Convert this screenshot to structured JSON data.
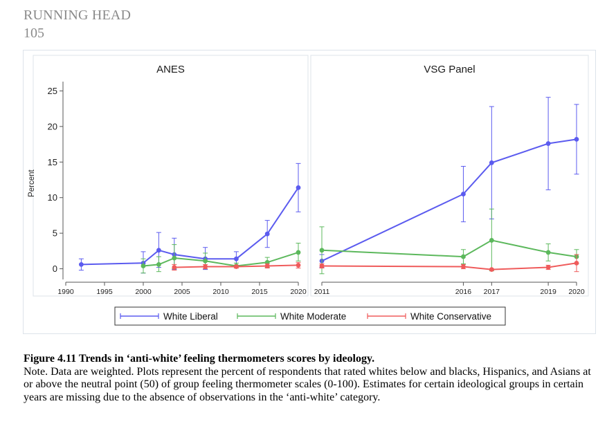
{
  "page": {
    "running_head": "RUNNING HEAD",
    "page_number": "105"
  },
  "caption": {
    "title": "Figure 4.11 Trends in ‘anti-white’ feeling thermometers scores by ideology.",
    "note": "Note. Data are weighted. Plots represent the percent of respondents that rated whites below and blacks, Hispanics, and Asians at or above the neutral point (50) of group feeling thermometer scales (0-100). Estimates for certain ideological groups in certain years are missing due to the absence of observations  in the ‘anti-white’ category."
  },
  "colors": {
    "liberal": "#5b5bef",
    "moderate": "#5cb85c",
    "conservative": "#ef5b5b",
    "frame": "#dce3ea"
  },
  "chart_data": [
    {
      "type": "line",
      "panel": "ANES",
      "title": "ANES",
      "ylabel": "Percent",
      "xlabel": "",
      "ylim": [
        -1.5,
        26.5
      ],
      "yticks": [
        0,
        5,
        10,
        15,
        20,
        25
      ],
      "xlim": [
        1990,
        2020.8
      ],
      "xticks": [
        1990,
        1995,
        2000,
        2005,
        2010,
        2015,
        2020
      ],
      "x_scale": "linear",
      "grid": false,
      "legend": "bottom",
      "series": [
        {
          "name": "White Liberal",
          "color_key": "liberal",
          "points": [
            {
              "x": 1992,
              "y": 0.6,
              "lo": -0.2,
              "hi": 1.4
            },
            {
              "x": 2000,
              "y": 0.8,
              "lo": -0.6,
              "hi": 2.4
            },
            {
              "x": 2002,
              "y": 2.6,
              "lo": 0.2,
              "hi": 5.1
            },
            {
              "x": 2004,
              "y": 2.0,
              "lo": -0.1,
              "hi": 4.3
            },
            {
              "x": 2008,
              "y": 1.4,
              "lo": -0.1,
              "hi": 3.0
            },
            {
              "x": 2012,
              "y": 1.4,
              "lo": 0.3,
              "hi": 2.4
            },
            {
              "x": 2016,
              "y": 4.9,
              "lo": 3.0,
              "hi": 6.8
            },
            {
              "x": 2020,
              "y": 11.4,
              "lo": 8.0,
              "hi": 14.8
            }
          ]
        },
        {
          "name": "White Moderate",
          "color_key": "moderate",
          "points": [
            {
              "x": 2000,
              "y": 0.4,
              "lo": -0.6,
              "hi": 1.4
            },
            {
              "x": 2002,
              "y": 0.6,
              "lo": -0.4,
              "hi": 1.7
            },
            {
              "x": 2004,
              "y": 1.5,
              "lo": 0.0,
              "hi": 3.4
            },
            {
              "x": 2008,
              "y": 1.1,
              "lo": 0.0,
              "hi": 2.2
            },
            {
              "x": 2012,
              "y": 0.4,
              "lo": 0.1,
              "hi": 0.8
            },
            {
              "x": 2016,
              "y": 0.9,
              "lo": 0.2,
              "hi": 1.6
            },
            {
              "x": 2020,
              "y": 2.3,
              "lo": 1.1,
              "hi": 3.6
            }
          ]
        },
        {
          "name": "White Conservative",
          "color_key": "conservative",
          "points": [
            {
              "x": 2004,
              "y": 0.2,
              "lo": -0.2,
              "hi": 0.6
            },
            {
              "x": 2008,
              "y": 0.3,
              "lo": 0.0,
              "hi": 0.6
            },
            {
              "x": 2012,
              "y": 0.3,
              "lo": 0.1,
              "hi": 0.5
            },
            {
              "x": 2016,
              "y": 0.4,
              "lo": 0.1,
              "hi": 0.7
            },
            {
              "x": 2020,
              "y": 0.5,
              "lo": 0.1,
              "hi": 0.9
            }
          ]
        }
      ]
    },
    {
      "type": "line",
      "panel": "VSG Panel",
      "title": "VSG Panel",
      "xlabel": "",
      "ylim": [
        -1.5,
        26.5
      ],
      "yticks": [
        0,
        5,
        10,
        15,
        20,
        25
      ],
      "x_scale": "categorical-ordinal",
      "xticks": [
        2011,
        2016,
        2017,
        2019,
        2020
      ],
      "grid": false,
      "series": [
        {
          "name": "White Liberal",
          "color_key": "liberal",
          "points": [
            {
              "x": 2011,
              "y": 1.1,
              "lo": 0.2,
              "hi": 2.0
            },
            {
              "x": 2016,
              "y": 10.5,
              "lo": 6.6,
              "hi": 14.4
            },
            {
              "x": 2017,
              "y": 14.9,
              "lo": 7.0,
              "hi": 22.8
            },
            {
              "x": 2019,
              "y": 17.6,
              "lo": 11.1,
              "hi": 24.1
            },
            {
              "x": 2020,
              "y": 18.2,
              "lo": 13.3,
              "hi": 23.1
            }
          ]
        },
        {
          "name": "White Moderate",
          "color_key": "moderate",
          "points": [
            {
              "x": 2011,
              "y": 2.6,
              "lo": -0.7,
              "hi": 5.9
            },
            {
              "x": 2016,
              "y": 1.7,
              "lo": 0.7,
              "hi": 2.7
            },
            {
              "x": 2017,
              "y": 4.0,
              "lo": -0.3,
              "hi": 8.4
            },
            {
              "x": 2019,
              "y": 2.3,
              "lo": 1.1,
              "hi": 3.5
            },
            {
              "x": 2020,
              "y": 1.7,
              "lo": 0.7,
              "hi": 2.7
            }
          ]
        },
        {
          "name": "White Conservative",
          "color_key": "conservative",
          "points": [
            {
              "x": 2011,
              "y": 0.4,
              "lo": 0.1,
              "hi": 0.7
            },
            {
              "x": 2016,
              "y": 0.3,
              "lo": 0.0,
              "hi": 0.6
            },
            {
              "x": 2017,
              "y": -0.1,
              "lo": -0.2,
              "hi": 0.0
            },
            {
              "x": 2019,
              "y": 0.2,
              "lo": -0.1,
              "hi": 0.5
            },
            {
              "x": 2020,
              "y": 0.8,
              "lo": -0.4,
              "hi": 2.0
            }
          ]
        }
      ]
    }
  ]
}
